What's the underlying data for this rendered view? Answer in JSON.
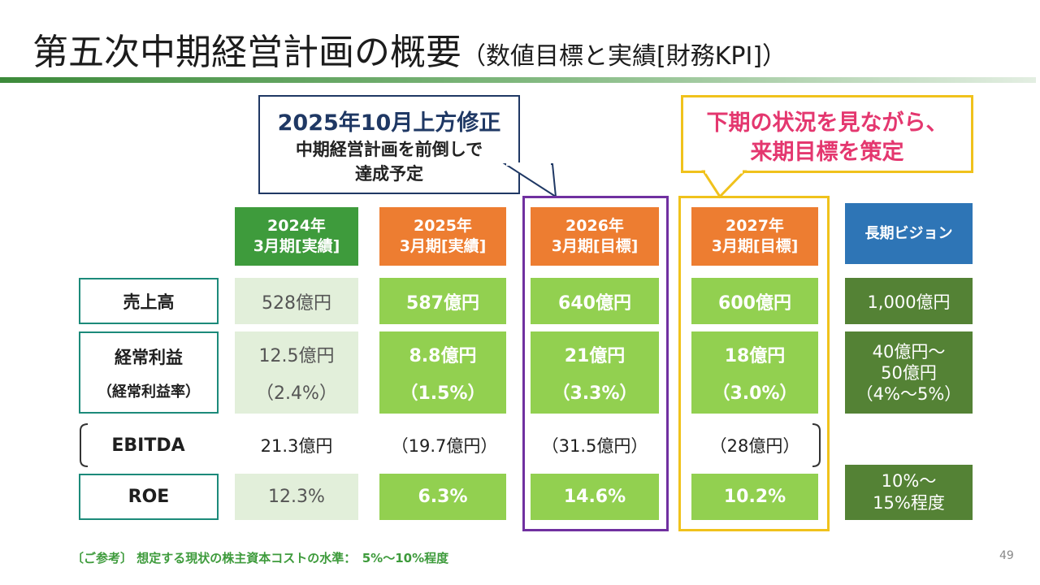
{
  "title": {
    "main": "第五次中期経営計画の概要",
    "sub": "（数値目標と実績[財務KPI]）"
  },
  "callouts": {
    "revision": {
      "line1": "2025年10月上方修正",
      "line2": "中期経営計画を前倒しで",
      "line3": "達成予定"
    },
    "next_period": {
      "line1": "下期の状況を見ながら、",
      "line2": "来期目標を策定"
    }
  },
  "columns": [
    {
      "line1": "2024年",
      "line2": "3月期[実績]",
      "color": "#3e9b3c"
    },
    {
      "line1": "2025年",
      "line2": "3月期[実績]",
      "color": "#ed7d31"
    },
    {
      "line1": "2026年",
      "line2": "3月期[目標]",
      "color": "#ed7d31"
    },
    {
      "line1": "2027年",
      "line2": "3月期[目標]",
      "color": "#ed7d31"
    },
    {
      "line1": "長期ビジョン",
      "line2": "",
      "color": "#2e75b6"
    }
  ],
  "rows": {
    "sales": {
      "label": "売上高",
      "values": [
        "528億円",
        "587億円",
        "640億円",
        "600億円",
        "1,000億円"
      ]
    },
    "ordinary_profit": {
      "label": "経常利益",
      "sublabel": "（経常利益率）",
      "values": [
        "12.5億円",
        "8.8億円",
        "21億円",
        "18億円"
      ],
      "rates": [
        "（2.4%）",
        "（1.5%）",
        "（3.3%）",
        "（3.0%）"
      ],
      "vision": [
        "40億円～",
        "50億円",
        "（4%～5%）"
      ]
    },
    "ebitda": {
      "label": "EBITDA",
      "values": [
        "21.3億円",
        "（19.7億円）",
        "（31.5億円）",
        "（28億円）"
      ]
    },
    "roe": {
      "label": "ROE",
      "values": [
        "12.3%",
        "6.3%",
        "14.6%",
        "10.2%"
      ],
      "vision": [
        "10%～",
        "15%程度"
      ]
    }
  },
  "footnote": "〔ご参考〕 想定する現状の株主資本コストの水準：　5%～10%程度",
  "page_number": "49",
  "colors": {
    "navy": "#1f3864",
    "purple": "#7030a0",
    "yellow": "#f0c21c",
    "pink": "#e4376f",
    "teal": "#1c8a7a"
  }
}
